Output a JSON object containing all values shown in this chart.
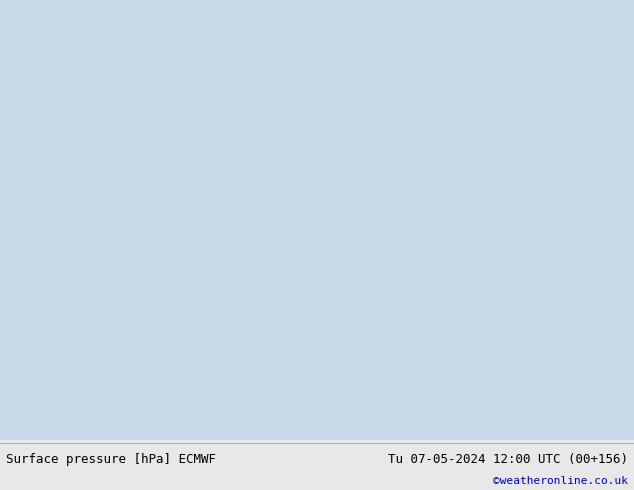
{
  "title_left": "Surface pressure [hPa] ECMWF",
  "title_right": "Tu 07-05-2024 12:00 UTC (00+156)",
  "watermark": "©weatheronline.co.uk",
  "bg_color": "#d8d8d8",
  "land_color": "#aed688",
  "sea_color": "#c8d8e8",
  "footer_bg": "#e8e8e8",
  "watermark_color": "#0000bb",
  "footer_fontsize": 9,
  "lon_min": 70,
  "lon_max": 158,
  "lat_min": -15,
  "lat_max": 55
}
